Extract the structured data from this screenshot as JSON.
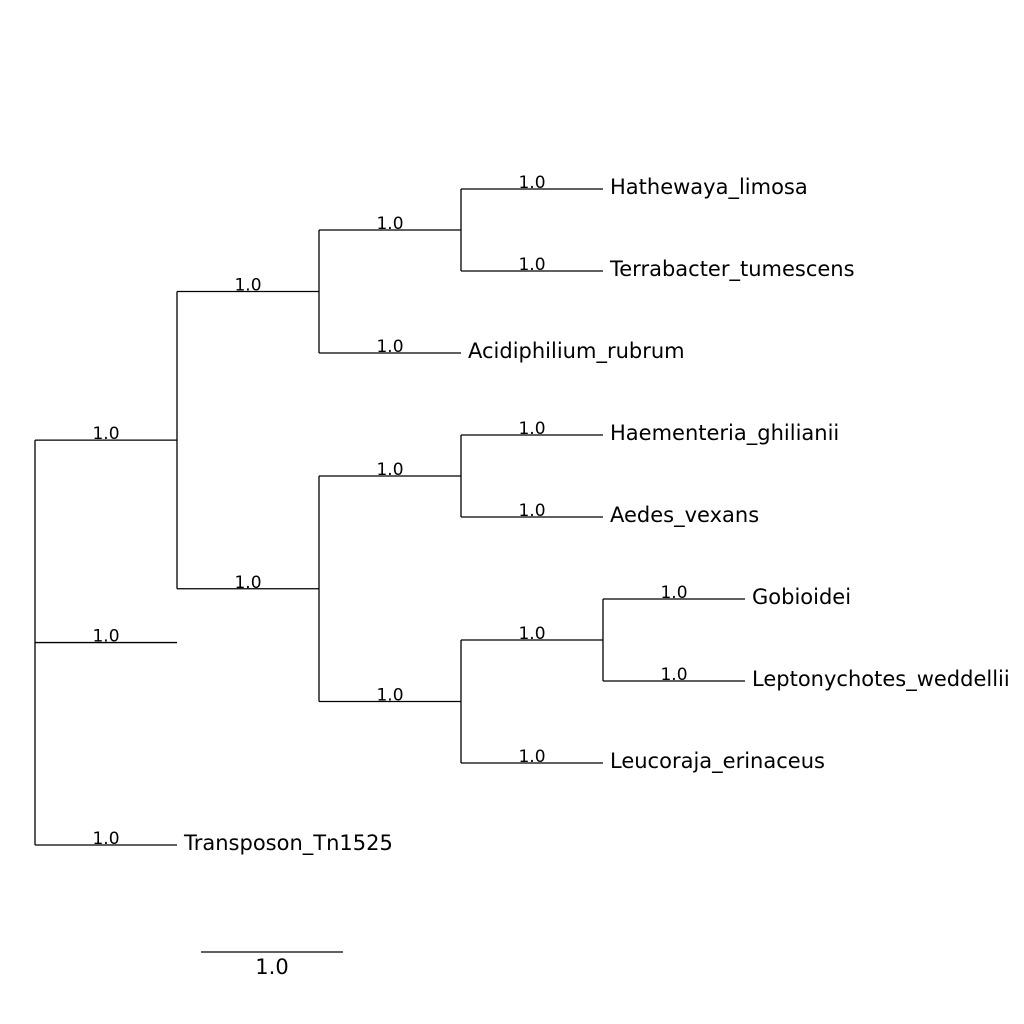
{
  "tree": {
    "support": "1.0",
    "children": [
      {
        "support": "1.0",
        "children": [
          {
            "support": "1.0",
            "children": [
              {
                "support": "1.0",
                "children": [
                  {
                    "name": "Hathewaya_limosa",
                    "support": "1.0"
                  },
                  {
                    "name": "Terrabacter_tumescens",
                    "support": "1.0"
                  }
                ]
              },
              {
                "name": "Acidiphilium_rubrum",
                "support": "1.0"
              }
            ]
          },
          {
            "support": "1.0",
            "children": [
              {
                "support": "1.0",
                "children": [
                  {
                    "name": "Haementeria_ghilianii",
                    "support": "1.0"
                  },
                  {
                    "name": "Aedes_vexans",
                    "support": "1.0"
                  }
                ]
              },
              {
                "support": "1.0",
                "children": [
                  {
                    "support": "1.0",
                    "children": [
                      {
                        "name": "Gobioidei",
                        "support": "1.0"
                      },
                      {
                        "name": "Leptonychotes_weddellii",
                        "support": "1.0"
                      }
                    ]
                  },
                  {
                    "name": "Leucoraja_erinaceus",
                    "support": "1.0"
                  }
                ]
              }
            ]
          }
        ]
      },
      {
        "name": "Transposon_Tn1525",
        "support": "1.0"
      }
    ]
  },
  "scale_bar": {
    "label": "1.0",
    "length": 1.0
  }
}
